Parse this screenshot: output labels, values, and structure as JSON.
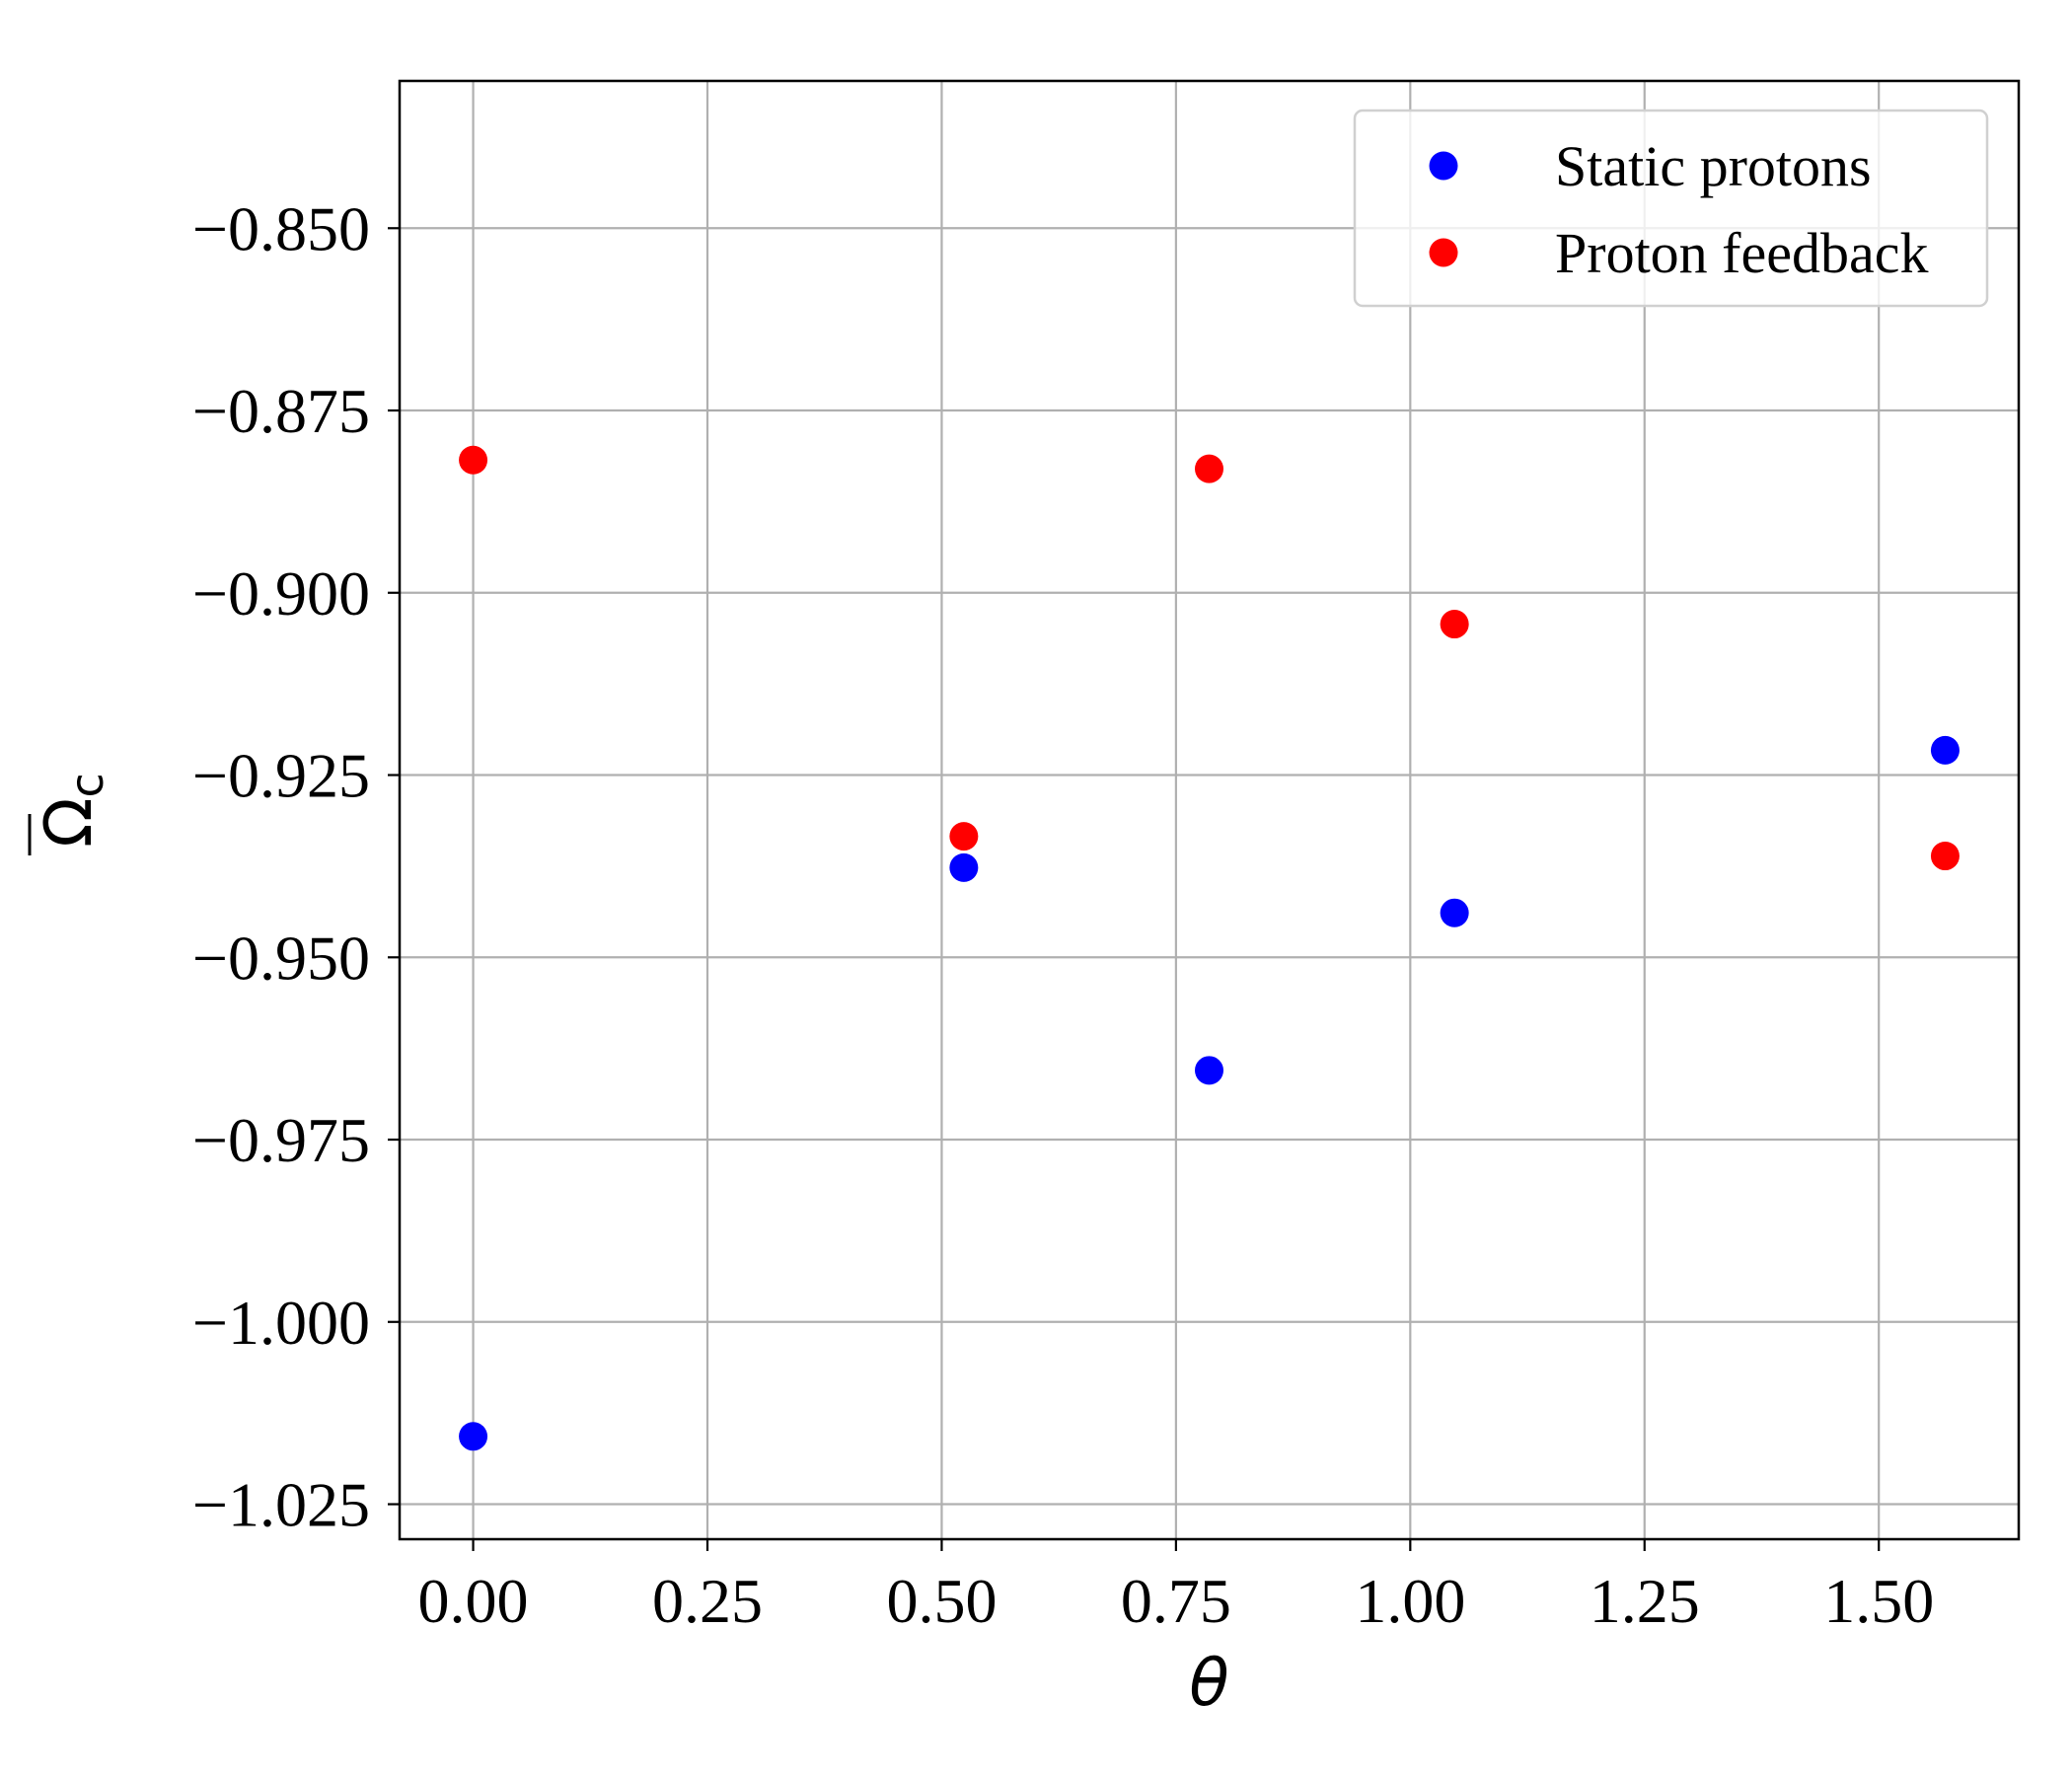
{
  "chart_data": {
    "type": "scatter",
    "title": "",
    "xlabel": "θ",
    "ylabel": "Ω_c",
    "xlim": [
      -0.0785,
      1.6493
    ],
    "ylim": [
      -1.0298,
      -0.8298
    ],
    "x_ticks": [
      0.0,
      0.25,
      0.5,
      0.75,
      1.0,
      1.25,
      1.5
    ],
    "x_tick_labels": [
      "0.00",
      "0.25",
      "0.50",
      "0.75",
      "1.00",
      "1.25",
      "1.50"
    ],
    "y_ticks": [
      -0.85,
      -0.875,
      -0.9,
      -0.925,
      -0.95,
      -0.975,
      -1.0,
      -1.025
    ],
    "y_tick_labels": [
      "−0.850",
      "−0.875",
      "−0.900",
      "−0.925",
      "−0.950",
      "−0.975",
      "−1.000",
      "−1.025"
    ],
    "grid": true,
    "legend_position": "top-right",
    "series": [
      {
        "name": "Static protons",
        "color": "#0000ff",
        "x": [
          0.0,
          0.5236,
          0.7854,
          1.0472,
          1.5708
        ],
        "y": [
          -1.0157,
          -0.9377,
          -0.9655,
          -0.9439,
          -0.9216
        ]
      },
      {
        "name": "Proton feedback",
        "color": "#ff0000",
        "x": [
          0.0,
          0.5236,
          0.7854,
          1.0472,
          1.5708
        ],
        "y": [
          -0.8818,
          -0.9334,
          -0.883,
          -0.9043,
          -0.9361
        ]
      }
    ]
  }
}
